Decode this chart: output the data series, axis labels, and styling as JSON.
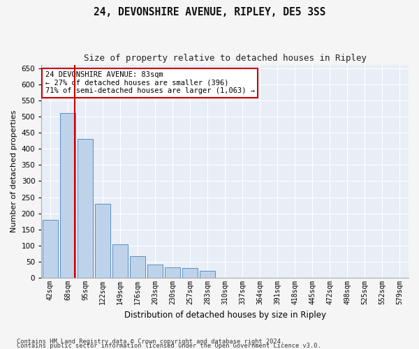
{
  "title1": "24, DEVONSHIRE AVENUE, RIPLEY, DE5 3SS",
  "title2": "Size of property relative to detached houses in Ripley",
  "xlabel": "Distribution of detached houses by size in Ripley",
  "ylabel": "Number of detached properties",
  "footnote1": "Contains HM Land Registry data © Crown copyright and database right 2024.",
  "footnote2": "Contains public sector information licensed under the Open Government Licence v3.0.",
  "categories": [
    "42sqm",
    "68sqm",
    "95sqm",
    "122sqm",
    "149sqm",
    "176sqm",
    "203sqm",
    "230sqm",
    "257sqm",
    "283sqm",
    "310sqm",
    "337sqm",
    "364sqm",
    "391sqm",
    "418sqm",
    "445sqm",
    "472sqm",
    "498sqm",
    "525sqm",
    "552sqm",
    "579sqm"
  ],
  "values": [
    180,
    510,
    430,
    230,
    105,
    68,
    42,
    32,
    30,
    22,
    0,
    0,
    0,
    0,
    0,
    0,
    0,
    0,
    0,
    0,
    0
  ],
  "bar_color": "#bed3ea",
  "bar_edge_color": "#5b8ec4",
  "background_color": "#e8eef6",
  "grid_color": "#ffffff",
  "vline_color": "#cc0000",
  "vline_x": 1.42,
  "annotation_text": "24 DEVONSHIRE AVENUE: 83sqm\n← 27% of detached houses are smaller (396)\n71% of semi-detached houses are larger (1,063) →",
  "annotation_box_facecolor": "#ffffff",
  "annotation_box_edgecolor": "#cc0000",
  "ylim": [
    0,
    660
  ],
  "yticks": [
    0,
    50,
    100,
    150,
    200,
    250,
    300,
    350,
    400,
    450,
    500,
    550,
    600,
    650
  ],
  "fig_facecolor": "#f5f5f5"
}
